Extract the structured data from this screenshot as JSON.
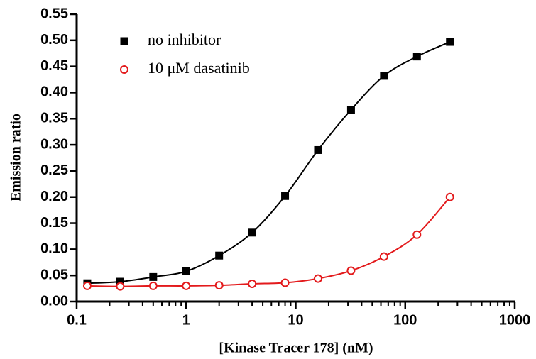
{
  "chart_data": {
    "type": "scatter",
    "xlabel": "[Kinase Tracer 178] (nM)",
    "ylabel": "Emission ratio",
    "x": [
      0.125,
      0.25,
      0.5,
      1,
      2,
      4,
      8,
      16,
      32,
      64,
      128,
      256
    ],
    "series": [
      {
        "name": "no inhibitor",
        "color": "#000000",
        "marker": "square",
        "values": [
          0.035,
          0.038,
          0.047,
          0.058,
          0.088,
          0.132,
          0.202,
          0.29,
          0.367,
          0.432,
          0.469,
          0.497
        ]
      },
      {
        "name": "10 μM dasatinib",
        "color": "#e31a1c",
        "marker": "open-circle",
        "values": [
          0.03,
          0.029,
          0.03,
          0.03,
          0.031,
          0.034,
          0.036,
          0.044,
          0.059,
          0.086,
          0.128,
          0.2
        ]
      }
    ],
    "xscale": "log",
    "xlim": [
      0.1,
      1000
    ],
    "xticks": [
      0.1,
      1,
      10,
      100,
      1000
    ],
    "ylim": [
      0,
      0.55
    ],
    "yticks": [
      {
        "value": 0,
        "label": "0.00"
      },
      {
        "value": 0.05,
        "label": "0.05"
      },
      {
        "value": 0.1,
        "label": "0.10"
      },
      {
        "value": 0.15,
        "label": "0.15"
      },
      {
        "value": 0.2,
        "label": "0.20"
      },
      {
        "value": 0.25,
        "label": "0.25"
      },
      {
        "value": 0.3,
        "label": "0.30"
      },
      {
        "value": 0.35,
        "label": "0.35"
      },
      {
        "value": 0.4,
        "label": "0.40"
      },
      {
        "value": 0.45,
        "label": "0.45"
      },
      {
        "value": 0.5,
        "label": "0.50"
      },
      {
        "value": 0.55,
        "label": "0.55"
      }
    ],
    "legend": "upper-left",
    "grid": false
  }
}
